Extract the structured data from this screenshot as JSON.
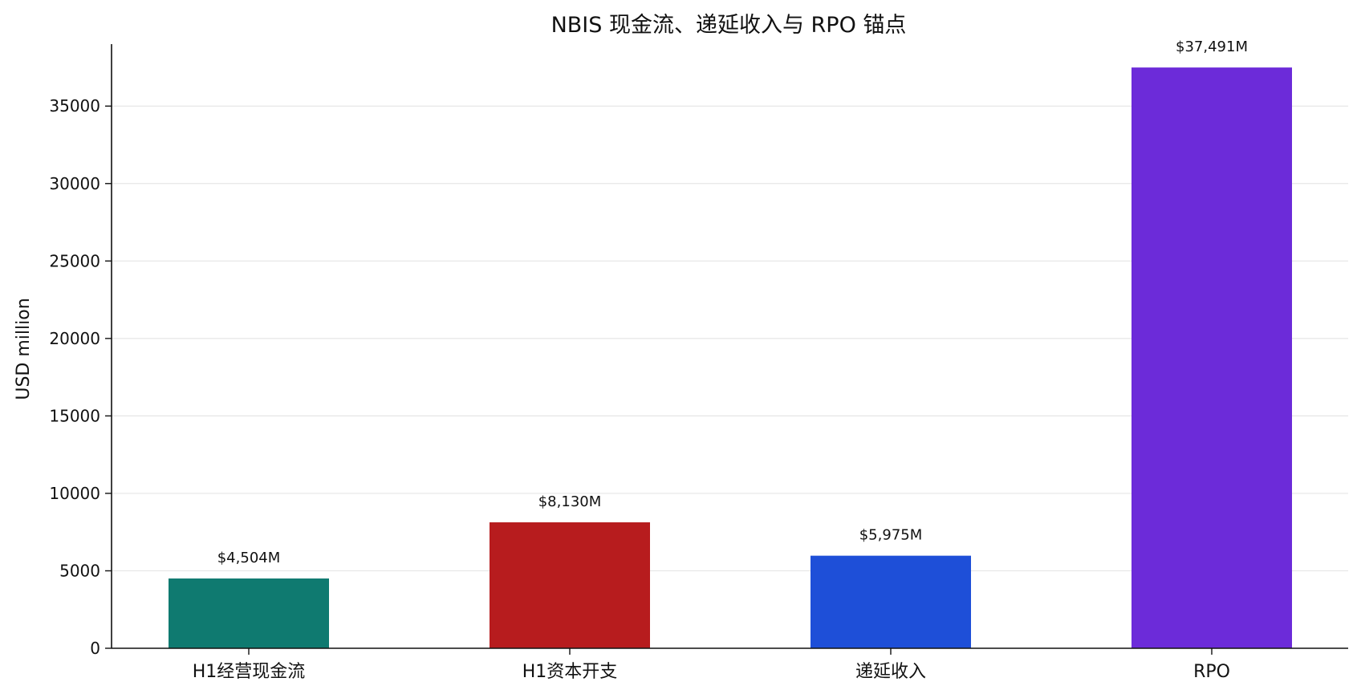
{
  "chart_data": {
    "type": "bar",
    "title": "NBIS 现金流、递延收入与 RPO 锚点",
    "xlabel": "",
    "ylabel": "USD million",
    "categories": [
      "H1经营现金流",
      "H1资本开支",
      "递延收入",
      "RPO"
    ],
    "values": [
      4504,
      8130,
      5975,
      37491
    ],
    "data_labels": [
      "$4,504M",
      "$8,130M",
      "$5,975M",
      "$37,491M"
    ],
    "colors": [
      "#0f7a70",
      "#b71c1e",
      "#1e4fd8",
      "#6c2bd9"
    ],
    "ylim": [
      0,
      39000
    ],
    "yticks": [
      0,
      5000,
      10000,
      15000,
      20000,
      25000,
      30000,
      35000
    ],
    "ytick_labels": [
      "0",
      "5000",
      "10000",
      "15000",
      "20000",
      "25000",
      "30000",
      "35000"
    ],
    "grid": "horizontal",
    "legend": "none"
  }
}
